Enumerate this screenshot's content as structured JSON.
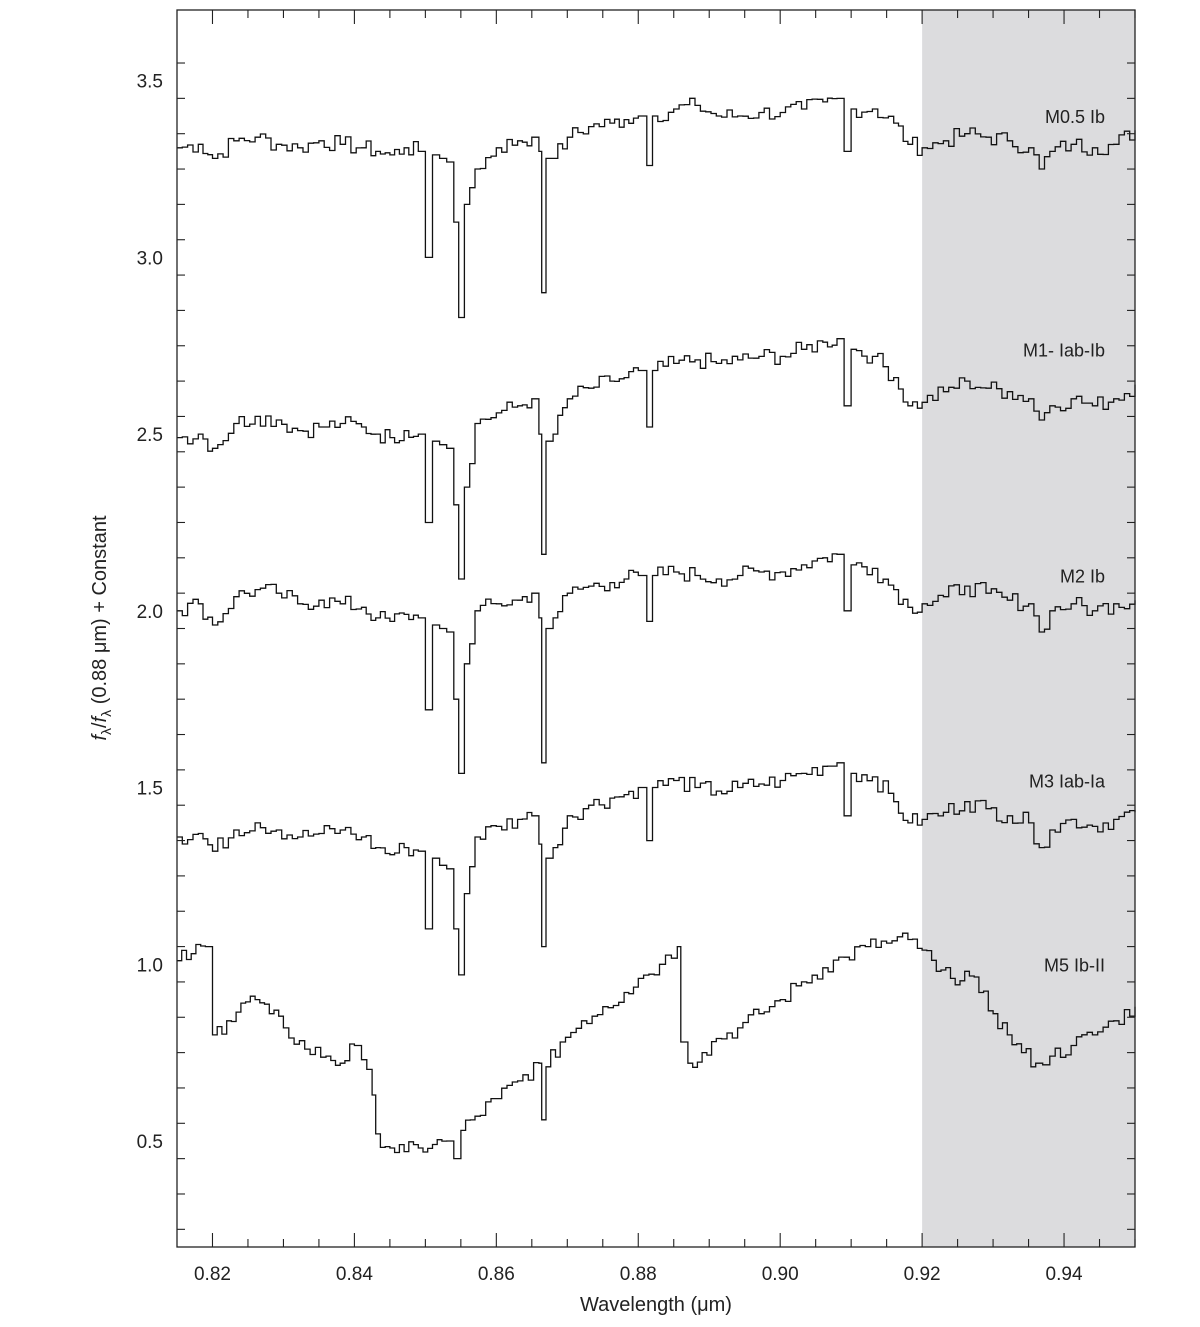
{
  "chart_data": {
    "type": "line",
    "xlabel": "Wavelength (μm)",
    "ylabel_parts": {
      "f1": "f",
      "sub1": "λ",
      "slash": "/",
      "f2": "f",
      "sub2": "λ",
      "rest": " (0.88 μm) + Constant"
    },
    "xlim": [
      0.815,
      0.95
    ],
    "ylim": [
      0.2,
      3.7
    ],
    "x_ticks": [
      "0.82",
      "0.84",
      "0.86",
      "0.88",
      "0.90",
      "0.92",
      "0.94"
    ],
    "y_ticks": [
      "0.5",
      "1.0",
      "1.5",
      "2.0",
      "2.5",
      "3.0",
      "3.5"
    ],
    "shaded_region": [
      0.92,
      0.95
    ],
    "shade_color": "#dcdcde",
    "line_color": "#111111",
    "series": [
      {
        "name": "M0.5 Ib",
        "points": [
          [
            0.815,
            3.31
          ],
          [
            0.818,
            3.32
          ],
          [
            0.82,
            3.28
          ],
          [
            0.823,
            3.33
          ],
          [
            0.826,
            3.34
          ],
          [
            0.829,
            3.32
          ],
          [
            0.832,
            3.31
          ],
          [
            0.835,
            3.33
          ],
          [
            0.838,
            3.32
          ],
          [
            0.841,
            3.31
          ],
          [
            0.843,
            3.3
          ],
          [
            0.845,
            3.29
          ],
          [
            0.847,
            3.31
          ],
          [
            0.849,
            3.3
          ],
          [
            0.85,
            3.0
          ],
          [
            0.851,
            3.29
          ],
          [
            0.852,
            3.28
          ],
          [
            0.853,
            3.27
          ],
          [
            0.854,
            3.1
          ],
          [
            0.8547,
            2.83
          ],
          [
            0.8555,
            3.15
          ],
          [
            0.857,
            3.25
          ],
          [
            0.86,
            3.31
          ],
          [
            0.863,
            3.33
          ],
          [
            0.865,
            3.34
          ],
          [
            0.866,
            3.3
          ],
          [
            0.8664,
            2.9
          ],
          [
            0.867,
            3.28
          ],
          [
            0.868,
            3.28
          ],
          [
            0.87,
            3.34
          ],
          [
            0.873,
            3.37
          ],
          [
            0.876,
            3.38
          ],
          [
            0.878,
            3.39
          ],
          [
            0.88,
            3.4
          ],
          [
            0.8812,
            3.26
          ],
          [
            0.882,
            3.4
          ],
          [
            0.885,
            3.42
          ],
          [
            0.888,
            3.43
          ],
          [
            0.891,
            3.4
          ],
          [
            0.894,
            3.4
          ],
          [
            0.897,
            3.41
          ],
          [
            0.9,
            3.41
          ],
          [
            0.903,
            3.42
          ],
          [
            0.906,
            3.44
          ],
          [
            0.908,
            3.45
          ],
          [
            0.909,
            3.3
          ],
          [
            0.91,
            3.42
          ],
          [
            0.913,
            3.42
          ],
          [
            0.916,
            3.38
          ],
          [
            0.918,
            3.32
          ],
          [
            0.92,
            3.31
          ],
          [
            0.923,
            3.33
          ],
          [
            0.926,
            3.35
          ],
          [
            0.929,
            3.34
          ],
          [
            0.932,
            3.33
          ],
          [
            0.935,
            3.31
          ],
          [
            0.9365,
            3.25
          ],
          [
            0.938,
            3.3
          ],
          [
            0.941,
            3.32
          ],
          [
            0.944,
            3.31
          ],
          [
            0.947,
            3.32
          ],
          [
            0.95,
            3.36
          ]
        ]
      },
      {
        "name": "M1- Iab-Ib",
        "points": [
          [
            0.815,
            2.49
          ],
          [
            0.818,
            2.5
          ],
          [
            0.82,
            2.46
          ],
          [
            0.823,
            2.53
          ],
          [
            0.826,
            2.55
          ],
          [
            0.829,
            2.54
          ],
          [
            0.832,
            2.51
          ],
          [
            0.835,
            2.52
          ],
          [
            0.838,
            2.53
          ],
          [
            0.841,
            2.52
          ],
          [
            0.843,
            2.5
          ],
          [
            0.845,
            2.49
          ],
          [
            0.847,
            2.51
          ],
          [
            0.849,
            2.5
          ],
          [
            0.85,
            2.25
          ],
          [
            0.851,
            2.48
          ],
          [
            0.852,
            2.47
          ],
          [
            0.853,
            2.46
          ],
          [
            0.854,
            2.3
          ],
          [
            0.8547,
            2.09
          ],
          [
            0.8555,
            2.35
          ],
          [
            0.857,
            2.53
          ],
          [
            0.86,
            2.56
          ],
          [
            0.863,
            2.58
          ],
          [
            0.865,
            2.6
          ],
          [
            0.866,
            2.5
          ],
          [
            0.8664,
            2.16
          ],
          [
            0.867,
            2.48
          ],
          [
            0.868,
            2.5
          ],
          [
            0.87,
            2.6
          ],
          [
            0.873,
            2.63
          ],
          [
            0.876,
            2.65
          ],
          [
            0.878,
            2.66
          ],
          [
            0.88,
            2.68
          ],
          [
            0.8812,
            2.52
          ],
          [
            0.882,
            2.68
          ],
          [
            0.885,
            2.7
          ],
          [
            0.888,
            2.71
          ],
          [
            0.891,
            2.7
          ],
          [
            0.894,
            2.71
          ],
          [
            0.897,
            2.72
          ],
          [
            0.9,
            2.72
          ],
          [
            0.903,
            2.74
          ],
          [
            0.906,
            2.76
          ],
          [
            0.908,
            2.77
          ],
          [
            0.909,
            2.58
          ],
          [
            0.91,
            2.74
          ],
          [
            0.913,
            2.72
          ],
          [
            0.916,
            2.66
          ],
          [
            0.918,
            2.58
          ],
          [
            0.92,
            2.59
          ],
          [
            0.923,
            2.62
          ],
          [
            0.926,
            2.65
          ],
          [
            0.929,
            2.63
          ],
          [
            0.932,
            2.62
          ],
          [
            0.935,
            2.6
          ],
          [
            0.9365,
            2.54
          ],
          [
            0.938,
            2.58
          ],
          [
            0.941,
            2.6
          ],
          [
            0.944,
            2.58
          ],
          [
            0.947,
            2.6
          ],
          [
            0.95,
            2.64
          ]
        ]
      },
      {
        "name": "M2 Ib",
        "points": [
          [
            0.815,
            2.0
          ],
          [
            0.818,
            2.02
          ],
          [
            0.82,
            1.96
          ],
          [
            0.823,
            2.04
          ],
          [
            0.826,
            2.06
          ],
          [
            0.829,
            2.05
          ],
          [
            0.832,
            2.02
          ],
          [
            0.835,
            2.03
          ],
          [
            0.838,
            2.02
          ],
          [
            0.841,
            2.01
          ],
          [
            0.843,
            1.98
          ],
          [
            0.845,
            1.97
          ],
          [
            0.847,
            1.99
          ],
          [
            0.849,
            1.98
          ],
          [
            0.85,
            1.72
          ],
          [
            0.851,
            1.96
          ],
          [
            0.852,
            1.95
          ],
          [
            0.853,
            1.94
          ],
          [
            0.854,
            1.75
          ],
          [
            0.8547,
            1.54
          ],
          [
            0.8555,
            1.85
          ],
          [
            0.857,
            2.0
          ],
          [
            0.86,
            2.02
          ],
          [
            0.863,
            2.03
          ],
          [
            0.865,
            2.05
          ],
          [
            0.866,
            1.98
          ],
          [
            0.8664,
            1.57
          ],
          [
            0.867,
            1.95
          ],
          [
            0.868,
            1.98
          ],
          [
            0.87,
            2.05
          ],
          [
            0.873,
            2.07
          ],
          [
            0.876,
            2.08
          ],
          [
            0.878,
            2.09
          ],
          [
            0.88,
            2.1
          ],
          [
            0.8812,
            1.97
          ],
          [
            0.882,
            2.1
          ],
          [
            0.885,
            2.11
          ],
          [
            0.888,
            2.1
          ],
          [
            0.891,
            2.09
          ],
          [
            0.894,
            2.1
          ],
          [
            0.897,
            2.11
          ],
          [
            0.9,
            2.11
          ],
          [
            0.903,
            2.13
          ],
          [
            0.906,
            2.15
          ],
          [
            0.908,
            2.16
          ],
          [
            0.909,
            2.0
          ],
          [
            0.91,
            2.13
          ],
          [
            0.913,
            2.12
          ],
          [
            0.916,
            2.06
          ],
          [
            0.918,
            2.01
          ],
          [
            0.92,
            2.02
          ],
          [
            0.923,
            2.04
          ],
          [
            0.926,
            2.07
          ],
          [
            0.929,
            2.05
          ],
          [
            0.932,
            2.03
          ],
          [
            0.935,
            2.02
          ],
          [
            0.9365,
            1.94
          ],
          [
            0.938,
            2.0
          ],
          [
            0.941,
            2.02
          ],
          [
            0.944,
            2.0
          ],
          [
            0.947,
            2.02
          ],
          [
            0.95,
            2.03
          ]
        ]
      },
      {
        "name": "M3 Iab-Ia",
        "points": [
          [
            0.815,
            1.36
          ],
          [
            0.818,
            1.37
          ],
          [
            0.82,
            1.32
          ],
          [
            0.823,
            1.38
          ],
          [
            0.826,
            1.4
          ],
          [
            0.829,
            1.38
          ],
          [
            0.832,
            1.36
          ],
          [
            0.835,
            1.37
          ],
          [
            0.838,
            1.38
          ],
          [
            0.841,
            1.36
          ],
          [
            0.843,
            1.33
          ],
          [
            0.845,
            1.31
          ],
          [
            0.847,
            1.33
          ],
          [
            0.849,
            1.32
          ],
          [
            0.85,
            1.1
          ],
          [
            0.851,
            1.3
          ],
          [
            0.852,
            1.28
          ],
          [
            0.853,
            1.27
          ],
          [
            0.854,
            1.1
          ],
          [
            0.8547,
            0.97
          ],
          [
            0.8555,
            1.2
          ],
          [
            0.857,
            1.36
          ],
          [
            0.86,
            1.39
          ],
          [
            0.863,
            1.41
          ],
          [
            0.865,
            1.42
          ],
          [
            0.866,
            1.34
          ],
          [
            0.8664,
            1.05
          ],
          [
            0.867,
            1.3
          ],
          [
            0.868,
            1.33
          ],
          [
            0.87,
            1.42
          ],
          [
            0.873,
            1.45
          ],
          [
            0.876,
            1.47
          ],
          [
            0.878,
            1.48
          ],
          [
            0.88,
            1.5
          ],
          [
            0.8812,
            1.35
          ],
          [
            0.882,
            1.5
          ],
          [
            0.885,
            1.52
          ],
          [
            0.888,
            1.5
          ],
          [
            0.891,
            1.49
          ],
          [
            0.894,
            1.5
          ],
          [
            0.897,
            1.51
          ],
          [
            0.9,
            1.52
          ],
          [
            0.903,
            1.54
          ],
          [
            0.906,
            1.56
          ],
          [
            0.908,
            1.57
          ],
          [
            0.909,
            1.42
          ],
          [
            0.91,
            1.54
          ],
          [
            0.913,
            1.53
          ],
          [
            0.916,
            1.46
          ],
          [
            0.918,
            1.4
          ],
          [
            0.92,
            1.41
          ],
          [
            0.923,
            1.43
          ],
          [
            0.926,
            1.46
          ],
          [
            0.929,
            1.44
          ],
          [
            0.932,
            1.42
          ],
          [
            0.935,
            1.4
          ],
          [
            0.9365,
            1.33
          ],
          [
            0.938,
            1.38
          ],
          [
            0.941,
            1.41
          ],
          [
            0.944,
            1.39
          ],
          [
            0.947,
            1.41
          ],
          [
            0.95,
            1.43
          ]
        ]
      },
      {
        "name": "M5 Ib-II",
        "points": [
          [
            0.815,
            1.01
          ],
          [
            0.817,
            1.03
          ],
          [
            0.819,
            1.05
          ],
          [
            0.82,
            0.8
          ],
          [
            0.822,
            0.84
          ],
          [
            0.824,
            0.89
          ],
          [
            0.826,
            0.9
          ],
          [
            0.828,
            0.86
          ],
          [
            0.83,
            0.82
          ],
          [
            0.833,
            0.76
          ],
          [
            0.836,
            0.74
          ],
          [
            0.838,
            0.72
          ],
          [
            0.84,
            0.77
          ],
          [
            0.841,
            0.73
          ],
          [
            0.8425,
            0.63
          ],
          [
            0.843,
            0.52
          ],
          [
            0.845,
            0.48
          ],
          [
            0.847,
            0.47
          ],
          [
            0.849,
            0.48
          ],
          [
            0.851,
            0.49
          ],
          [
            0.853,
            0.5
          ],
          [
            0.854,
            0.45
          ],
          [
            0.855,
            0.53
          ],
          [
            0.857,
            0.57
          ],
          [
            0.86,
            0.62
          ],
          [
            0.863,
            0.67
          ],
          [
            0.866,
            0.72
          ],
          [
            0.8664,
            0.56
          ],
          [
            0.867,
            0.71
          ],
          [
            0.869,
            0.78
          ],
          [
            0.872,
            0.84
          ],
          [
            0.875,
            0.88
          ],
          [
            0.878,
            0.92
          ],
          [
            0.88,
            0.96
          ],
          [
            0.883,
            1.0
          ],
          [
            0.8855,
            1.05
          ],
          [
            0.886,
            0.78
          ],
          [
            0.887,
            0.72
          ],
          [
            0.889,
            0.75
          ],
          [
            0.891,
            0.79
          ],
          [
            0.894,
            0.82
          ],
          [
            0.897,
            0.86
          ],
          [
            0.9,
            0.9
          ],
          [
            0.903,
            0.95
          ],
          [
            0.906,
            0.99
          ],
          [
            0.909,
            1.02
          ],
          [
            0.912,
            1.05
          ],
          [
            0.915,
            1.06
          ],
          [
            0.918,
            1.07
          ],
          [
            0.92,
            1.04
          ],
          [
            0.922,
            0.98
          ],
          [
            0.924,
            0.96
          ],
          [
            0.926,
            0.98
          ],
          [
            0.928,
            0.92
          ],
          [
            0.93,
            0.86
          ],
          [
            0.932,
            0.8
          ],
          [
            0.934,
            0.75
          ],
          [
            0.936,
            0.72
          ],
          [
            0.938,
            0.74
          ],
          [
            0.941,
            0.77
          ],
          [
            0.944,
            0.8
          ],
          [
            0.947,
            0.84
          ],
          [
            0.95,
            0.88
          ]
        ]
      }
    ]
  }
}
